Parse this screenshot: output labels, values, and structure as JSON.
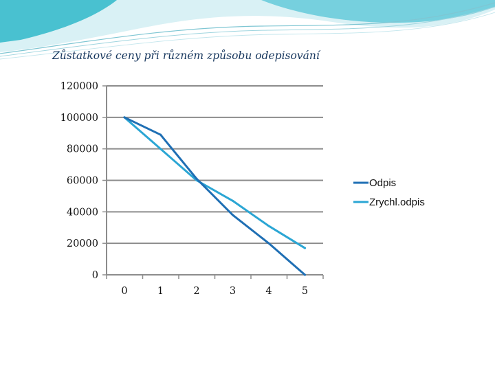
{
  "header": {
    "colors": {
      "teal": "#2fb8c9",
      "light": "#a9dfe8",
      "pale": "#d9f1f5"
    }
  },
  "chart_data": {
    "type": "line",
    "title": "Zůstatkové ceny při různém způsobu odepisování",
    "xlabel": "",
    "ylabel": "",
    "x": [
      "0",
      "1",
      "2",
      "3",
      "4",
      "5"
    ],
    "ylim": [
      0,
      120000
    ],
    "yticks": [
      "0",
      "20000",
      "40000",
      "60000",
      "80000",
      "100000",
      "120000"
    ],
    "grid": true,
    "legend_position": "right",
    "series": [
      {
        "name": "Odpis",
        "values": [
          100000,
          89000,
          61000,
          38000,
          20000,
          0
        ],
        "color": "#1f6fb4"
      },
      {
        "name": "Zrychl.odpis",
        "values": [
          100000,
          80000,
          60000,
          47000,
          31000,
          17000
        ],
        "color": "#2ba6d4"
      }
    ]
  }
}
